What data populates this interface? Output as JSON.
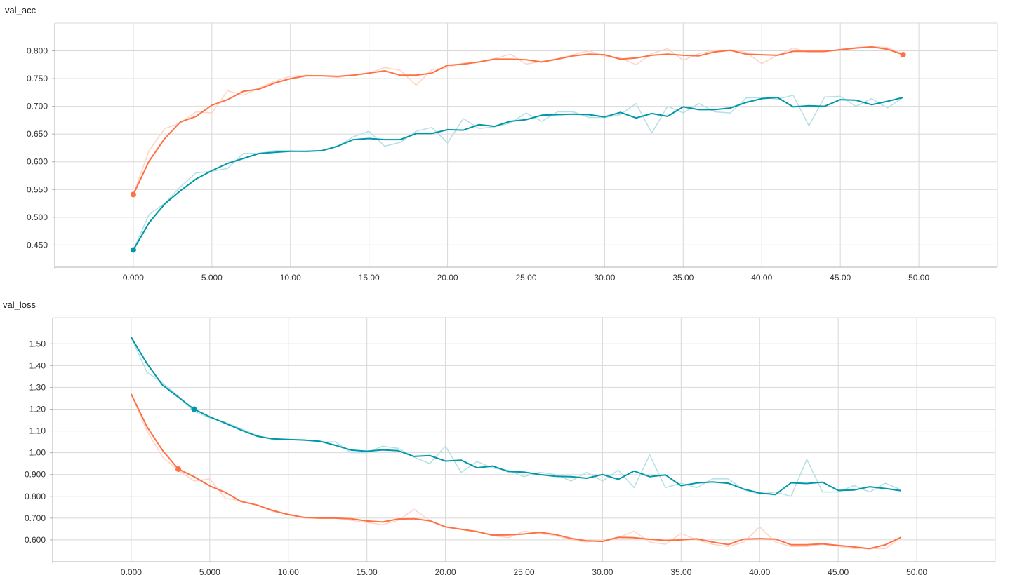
{
  "chart_data": [
    {
      "type": "line",
      "title": "val_acc",
      "x_ticks": [
        0,
        5,
        10,
        15,
        20,
        25,
        30,
        35,
        40,
        45,
        50
      ],
      "x_tick_labels": [
        "0.000",
        "5.000",
        "10.00",
        "15.00",
        "20.00",
        "25.00",
        "30.00",
        "35.00",
        "40.00",
        "45.00",
        "50.00"
      ],
      "y_ticks": [
        0.45,
        0.5,
        0.55,
        0.6,
        0.65,
        0.7,
        0.75,
        0.8
      ],
      "y_tick_labels": [
        "0.450",
        "0.500",
        "0.550",
        "0.600",
        "0.650",
        "0.700",
        "0.750",
        "0.800"
      ],
      "xlim": [
        -5,
        55
      ],
      "ylim": [
        0.41,
        0.85
      ],
      "grid": true,
      "x": [
        0,
        1,
        2,
        3,
        4,
        5,
        6,
        7,
        8,
        9,
        10,
        11,
        12,
        13,
        14,
        15,
        16,
        17,
        18,
        19,
        20,
        21,
        22,
        23,
        24,
        25,
        26,
        27,
        28,
        29,
        30,
        31,
        32,
        33,
        34,
        35,
        36,
        37,
        38,
        39,
        40,
        41,
        42,
        43,
        44,
        45,
        46,
        47,
        48,
        49
      ],
      "series": [
        {
          "color": "#ff7043",
          "marker_x": [
            0,
            49
          ],
          "raw": [
            0.541,
            0.62,
            0.66,
            0.67,
            0.69,
            0.688,
            0.728,
            0.72,
            0.733,
            0.745,
            0.754,
            0.756,
            0.755,
            0.752,
            0.757,
            0.76,
            0.77,
            0.765,
            0.738,
            0.766,
            0.77,
            0.778,
            0.78,
            0.786,
            0.794,
            0.776,
            0.781,
            0.786,
            0.793,
            0.8,
            0.79,
            0.787,
            0.775,
            0.795,
            0.804,
            0.783,
            0.795,
            0.8,
            0.802,
            0.797,
            0.777,
            0.792,
            0.805,
            0.797,
            0.798,
            0.803,
            0.806,
            0.808,
            0.806,
            0.794
          ],
          "smoothed": [
            0.541,
            0.601,
            0.642,
            0.672,
            0.682,
            0.702,
            0.712,
            0.727,
            0.731,
            0.742,
            0.75,
            0.755,
            0.755,
            0.754,
            0.756,
            0.76,
            0.764,
            0.756,
            0.756,
            0.76,
            0.774,
            0.776,
            0.78,
            0.785,
            0.785,
            0.784,
            0.78,
            0.785,
            0.791,
            0.794,
            0.793,
            0.785,
            0.787,
            0.792,
            0.794,
            0.792,
            0.791,
            0.798,
            0.801,
            0.794,
            0.793,
            0.792,
            0.799,
            0.799,
            0.799,
            0.802,
            0.805,
            0.807,
            0.803,
            0.793
          ]
        },
        {
          "color": "#0097a7",
          "marker_x": [
            0
          ],
          "raw": [
            0.441,
            0.505,
            0.525,
            0.555,
            0.58,
            0.583,
            0.588,
            0.615,
            0.615,
            0.62,
            0.62,
            0.618,
            0.62,
            0.628,
            0.645,
            0.655,
            0.628,
            0.635,
            0.655,
            0.662,
            0.634,
            0.678,
            0.66,
            0.663,
            0.67,
            0.688,
            0.673,
            0.69,
            0.69,
            0.68,
            0.68,
            0.685,
            0.705,
            0.652,
            0.7,
            0.688,
            0.705,
            0.69,
            0.688,
            0.715,
            0.716,
            0.713,
            0.72,
            0.665,
            0.717,
            0.718,
            0.7,
            0.714,
            0.697,
            0.716
          ],
          "smoothed": [
            0.441,
            0.49,
            0.524,
            0.548,
            0.569,
            0.584,
            0.597,
            0.606,
            0.615,
            0.617,
            0.619,
            0.619,
            0.62,
            0.628,
            0.64,
            0.642,
            0.64,
            0.64,
            0.651,
            0.651,
            0.658,
            0.657,
            0.667,
            0.664,
            0.673,
            0.676,
            0.684,
            0.685,
            0.686,
            0.685,
            0.681,
            0.689,
            0.679,
            0.687,
            0.682,
            0.699,
            0.694,
            0.694,
            0.697,
            0.707,
            0.714,
            0.716,
            0.699,
            0.701,
            0.7,
            0.712,
            0.711,
            0.703,
            0.709,
            0.716
          ]
        }
      ]
    },
    {
      "type": "line",
      "title": "val_loss",
      "x_ticks": [
        0,
        5,
        10,
        15,
        20,
        25,
        30,
        35,
        40,
        45,
        50
      ],
      "x_tick_labels": [
        "0.000",
        "5.000",
        "10.00",
        "15.00",
        "20.00",
        "25.00",
        "30.00",
        "35.00",
        "40.00",
        "45.00",
        "50.00"
      ],
      "y_ticks": [
        0.6,
        0.7,
        0.8,
        0.9,
        1.0,
        1.1,
        1.2,
        1.3,
        1.4,
        1.5
      ],
      "y_tick_labels": [
        "0.600",
        "0.700",
        "0.800",
        "0.900",
        "1.00",
        "1.10",
        "1.20",
        "1.30",
        "1.40",
        "1.50"
      ],
      "xlim": [
        -5,
        55
      ],
      "ylim": [
        0.5,
        1.62
      ],
      "grid": true,
      "x": [
        0,
        1,
        2,
        3,
        4,
        5,
        6,
        7,
        8,
        9,
        10,
        11,
        12,
        13,
        14,
        15,
        16,
        17,
        18,
        19,
        20,
        21,
        22,
        23,
        24,
        25,
        26,
        27,
        28,
        29,
        30,
        31,
        32,
        33,
        34,
        35,
        36,
        37,
        38,
        39,
        40,
        41,
        42,
        43,
        44,
        45,
        46,
        47,
        48,
        49
      ],
      "series": [
        {
          "color": "#0097a7",
          "marker_x": [
            4
          ],
          "raw": [
            1.53,
            1.37,
            1.32,
            1.26,
            1.19,
            1.16,
            1.14,
            1.11,
            1.08,
            1.06,
            1.06,
            1.06,
            1.05,
            1.05,
            1.0,
            1.0,
            1.03,
            1.02,
            0.98,
            0.95,
            1.03,
            0.91,
            0.96,
            0.93,
            0.92,
            0.89,
            0.91,
            0.9,
            0.87,
            0.91,
            0.87,
            0.92,
            0.84,
            0.99,
            0.84,
            0.86,
            0.84,
            0.88,
            0.88,
            0.83,
            0.81,
            0.82,
            0.8,
            0.97,
            0.82,
            0.82,
            0.85,
            0.82,
            0.86,
            0.83
          ],
          "smoothed": [
            1.53,
            1.41,
            1.31,
            1.255,
            1.2,
            1.165,
            1.135,
            1.104,
            1.076,
            1.064,
            1.061,
            1.058,
            1.053,
            1.034,
            1.012,
            1.007,
            1.013,
            1.009,
            0.983,
            0.987,
            0.962,
            0.966,
            0.931,
            0.939,
            0.914,
            0.911,
            0.9,
            0.892,
            0.89,
            0.883,
            0.9,
            0.878,
            0.916,
            0.89,
            0.898,
            0.849,
            0.861,
            0.866,
            0.86,
            0.833,
            0.815,
            0.808,
            0.862,
            0.859,
            0.865,
            0.827,
            0.829,
            0.844,
            0.836,
            0.826
          ]
        },
        {
          "color": "#ff7043",
          "marker_x": [
            3
          ],
          "raw": [
            1.27,
            1.1,
            0.98,
            0.92,
            0.87,
            0.88,
            0.79,
            0.78,
            0.76,
            0.73,
            0.72,
            0.7,
            0.7,
            0.7,
            0.69,
            0.68,
            0.67,
            0.69,
            0.74,
            0.69,
            0.66,
            0.65,
            0.64,
            0.62,
            0.61,
            0.64,
            0.63,
            0.62,
            0.6,
            0.59,
            0.6,
            0.61,
            0.64,
            0.59,
            0.58,
            0.63,
            0.6,
            0.58,
            0.57,
            0.59,
            0.66,
            0.59,
            0.57,
            0.57,
            0.58,
            0.57,
            0.56,
            0.56,
            0.56,
            0.61
          ],
          "smoothed": [
            1.27,
            1.12,
            1.01,
            0.925,
            0.89,
            0.848,
            0.818,
            0.776,
            0.76,
            0.735,
            0.716,
            0.703,
            0.7,
            0.7,
            0.697,
            0.687,
            0.682,
            0.696,
            0.697,
            0.688,
            0.66,
            0.649,
            0.638,
            0.622,
            0.623,
            0.627,
            0.635,
            0.625,
            0.607,
            0.596,
            0.593,
            0.612,
            0.61,
            0.603,
            0.598,
            0.6,
            0.605,
            0.59,
            0.579,
            0.604,
            0.606,
            0.604,
            0.578,
            0.578,
            0.582,
            0.575,
            0.568,
            0.56,
            0.578,
            0.612
          ]
        }
      ]
    }
  ]
}
